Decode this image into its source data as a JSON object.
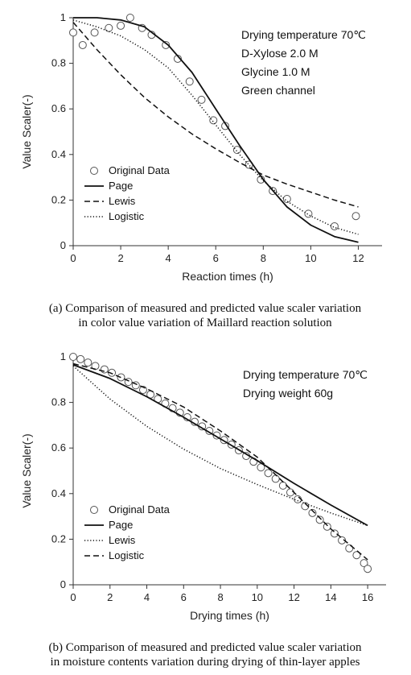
{
  "chart_data": [
    {
      "type": "line",
      "xlabel": "Reaction times (h)",
      "ylabel": "Value Scaler(-)",
      "xlim": [
        0,
        13
      ],
      "ylim": [
        0,
        1
      ],
      "xticks": [
        "0",
        "2",
        "4",
        "6",
        "8",
        "10",
        "12"
      ],
      "yticks": [
        "0",
        "0.2",
        "0.4",
        "0.6",
        "0.8",
        "1"
      ],
      "annotations": [
        "Drying temperature 70℃",
        "D-Xylose 2.0 M",
        "Glycine 1.0 M",
        "Green channel"
      ],
      "caption": [
        "(a) Comparison of measured and predicted value scaler variation",
        "in color value variation of Maillard reaction solution"
      ],
      "legend_position": "lower-left",
      "series": [
        {
          "name": "Original Data",
          "style": "markers",
          "x": [
            0,
            0.4,
            0.9,
            1.5,
            2.0,
            2.4,
            2.9,
            3.3,
            3.9,
            4.4,
            4.9,
            5.4,
            5.9,
            6.4,
            6.9,
            7.4,
            7.9,
            8.4,
            9.0,
            9.9,
            11.0,
            11.9
          ],
          "y": [
            0.935,
            0.88,
            0.935,
            0.955,
            0.965,
            1.0,
            0.955,
            0.925,
            0.88,
            0.82,
            0.72,
            0.64,
            0.55,
            0.525,
            0.42,
            0.355,
            0.29,
            0.24,
            0.205,
            0.14,
            0.085,
            0.13
          ]
        },
        {
          "name": "Page",
          "style": "solid",
          "x": [
            0,
            1,
            2,
            3,
            4,
            5,
            6,
            7,
            8,
            9,
            10,
            11,
            12
          ],
          "y": [
            1.0,
            1.0,
            0.99,
            0.96,
            0.88,
            0.76,
            0.6,
            0.44,
            0.29,
            0.17,
            0.09,
            0.04,
            0.015
          ]
        },
        {
          "name": "Lewis",
          "style": "dashed",
          "x": [
            0,
            1,
            2,
            3,
            4,
            5,
            6,
            7,
            8,
            9,
            10,
            11,
            12
          ],
          "y": [
            0.98,
            0.86,
            0.75,
            0.65,
            0.565,
            0.49,
            0.425,
            0.365,
            0.31,
            0.27,
            0.235,
            0.2,
            0.17
          ]
        },
        {
          "name": "Logistic",
          "style": "dotted",
          "x": [
            0,
            1,
            2,
            3,
            4,
            5,
            6,
            7,
            8,
            9,
            10,
            11,
            12
          ],
          "y": [
            0.99,
            0.96,
            0.92,
            0.86,
            0.78,
            0.66,
            0.53,
            0.4,
            0.285,
            0.195,
            0.13,
            0.08,
            0.05
          ]
        }
      ]
    },
    {
      "type": "line",
      "xlabel": "Drying times (h)",
      "ylabel": "Value Scaler(-)",
      "xlim": [
        0,
        17
      ],
      "ylim": [
        0,
        1
      ],
      "xticks": [
        "0",
        "2",
        "4",
        "6",
        "8",
        "10",
        "12",
        "14",
        "16"
      ],
      "yticks": [
        "0",
        "0.2",
        "0.4",
        "0.6",
        "0.8",
        "1"
      ],
      "annotations": [
        "Drying temperature 70℃",
        "Drying weight 60g"
      ],
      "caption": [
        "(b) Comparison of measured and predicted value scaler variation",
        "in moisture contents variation during drying of thin-layer apples"
      ],
      "legend_position": "lower-left",
      "series": [
        {
          "name": "Original Data",
          "style": "markers",
          "x": [
            0,
            0.4,
            0.8,
            1.2,
            1.7,
            2.1,
            2.6,
            3.0,
            3.4,
            3.8,
            4.2,
            4.6,
            5.0,
            5.4,
            5.8,
            6.2,
            6.6,
            7.0,
            7.4,
            7.8,
            8.2,
            8.6,
            9.0,
            9.4,
            9.8,
            10.2,
            10.6,
            11.0,
            11.4,
            11.8,
            12.2,
            12.6,
            13.0,
            13.4,
            13.8,
            14.2,
            14.6,
            15.0,
            15.4,
            15.8,
            16.0
          ],
          "y": [
            1.0,
            0.99,
            0.975,
            0.96,
            0.945,
            0.93,
            0.91,
            0.89,
            0.875,
            0.855,
            0.835,
            0.815,
            0.795,
            0.775,
            0.755,
            0.735,
            0.715,
            0.695,
            0.675,
            0.655,
            0.635,
            0.615,
            0.59,
            0.565,
            0.54,
            0.515,
            0.49,
            0.465,
            0.435,
            0.405,
            0.375,
            0.345,
            0.315,
            0.285,
            0.255,
            0.225,
            0.195,
            0.16,
            0.13,
            0.095,
            0.07
          ]
        },
        {
          "name": "Page",
          "style": "solid",
          "x": [
            0,
            2,
            4,
            6,
            8,
            10,
            12,
            14,
            16
          ],
          "y": [
            0.965,
            0.905,
            0.825,
            0.735,
            0.64,
            0.545,
            0.445,
            0.35,
            0.26
          ]
        },
        {
          "name": "Lewis",
          "style": "dotted",
          "x": [
            0,
            2,
            4,
            6,
            8,
            10,
            12,
            14,
            16
          ],
          "y": [
            0.96,
            0.815,
            0.695,
            0.595,
            0.51,
            0.44,
            0.375,
            0.315,
            0.26
          ]
        },
        {
          "name": "Logistic",
          "style": "dashed",
          "x": [
            0,
            2,
            4,
            6,
            8,
            10,
            12,
            14,
            16
          ],
          "y": [
            0.97,
            0.93,
            0.86,
            0.78,
            0.675,
            0.56,
            0.405,
            0.245,
            0.11
          ]
        }
      ]
    }
  ]
}
